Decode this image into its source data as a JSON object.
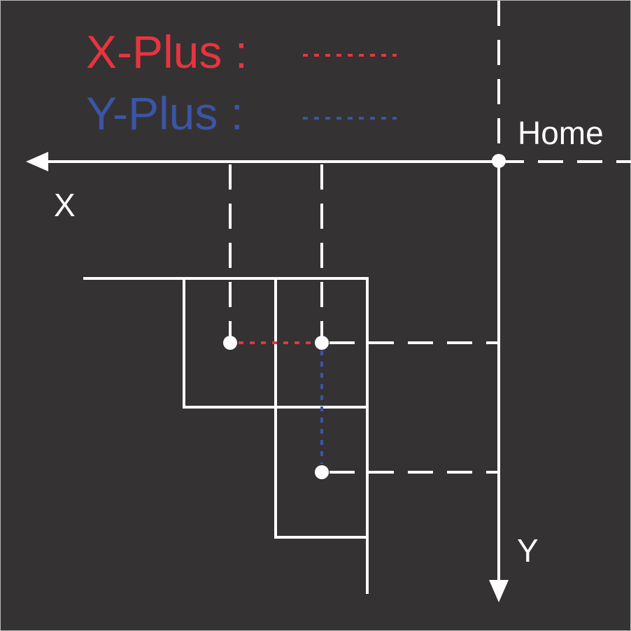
{
  "legend": {
    "x_plus_label": "X-Plus :",
    "y_plus_label": "Y-Plus :"
  },
  "axes": {
    "x_label": "X",
    "y_label": "Y",
    "home_label": "Home"
  },
  "colors": {
    "background": "#343233",
    "foreground": "#ffffff",
    "x_plus": "#e8343f",
    "y_plus": "#3b55a6"
  }
}
